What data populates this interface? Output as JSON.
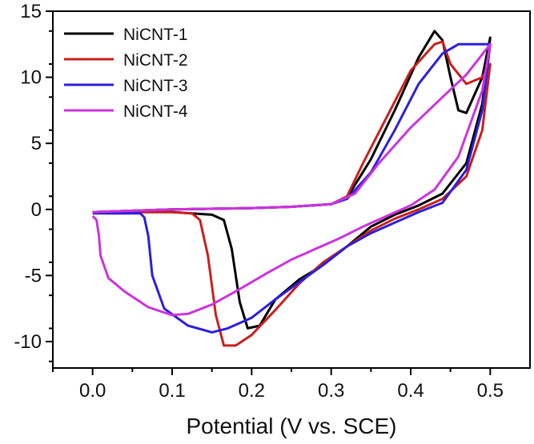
{
  "chart_data": {
    "type": "line",
    "title": "",
    "xlabel": "Potential (V vs. SCE)",
    "ylabel": "",
    "xlim": [
      -0.05,
      0.55
    ],
    "ylim": [
      -12,
      15
    ],
    "xticks": [
      0.0,
      0.1,
      0.2,
      0.3,
      0.4,
      0.5
    ],
    "xtick_labels": [
      "0.0",
      "0.1",
      "0.2",
      "0.3",
      "0.4",
      "0.5"
    ],
    "yticks": [
      -10,
      -5,
      0,
      5,
      10,
      15
    ],
    "ytick_labels": [
      "-10",
      "-5",
      "0",
      "5",
      "10",
      "15"
    ],
    "grid": false,
    "legend_position": "top-left",
    "series": [
      {
        "name": "NiCNT-1",
        "color": "#000000",
        "x": [
          0.0,
          0.1,
          0.2,
          0.25,
          0.3,
          0.32,
          0.35,
          0.38,
          0.41,
          0.43,
          0.44,
          0.45,
          0.46,
          0.47,
          0.49,
          0.5,
          0.49,
          0.47,
          0.44,
          0.41,
          0.38,
          0.35,
          0.32,
          0.29,
          0.26,
          0.23,
          0.21,
          0.195,
          0.185,
          0.175,
          0.165,
          0.15,
          0.1,
          0.05,
          0.0
        ],
        "y": [
          -0.2,
          0.0,
          0.1,
          0.2,
          0.4,
          0.9,
          3.8,
          7.5,
          11.5,
          13.5,
          12.8,
          10.0,
          7.5,
          7.3,
          10.0,
          13.0,
          8.0,
          3.5,
          1.2,
          0.3,
          -0.4,
          -1.3,
          -2.8,
          -4.2,
          -5.3,
          -6.8,
          -8.8,
          -9.0,
          -7.0,
          -3.0,
          -0.8,
          -0.4,
          -0.2,
          -0.2,
          -0.2
        ]
      },
      {
        "name": "NiCNT-2",
        "color": "#c8201e",
        "x": [
          0.0,
          0.1,
          0.2,
          0.25,
          0.3,
          0.32,
          0.34,
          0.37,
          0.4,
          0.43,
          0.44,
          0.45,
          0.47,
          0.49,
          0.5,
          0.49,
          0.47,
          0.44,
          0.41,
          0.38,
          0.35,
          0.32,
          0.29,
          0.26,
          0.23,
          0.2,
          0.18,
          0.165,
          0.155,
          0.145,
          0.135,
          0.125,
          0.1,
          0.05,
          0.0
        ],
        "y": [
          -0.2,
          0.0,
          0.1,
          0.2,
          0.4,
          1.0,
          3.5,
          7.0,
          10.5,
          12.5,
          12.7,
          11.0,
          9.5,
          10.0,
          11.0,
          6.0,
          2.5,
          0.8,
          0.0,
          -0.7,
          -1.6,
          -2.8,
          -4.0,
          -5.6,
          -7.6,
          -9.5,
          -10.3,
          -10.3,
          -8.0,
          -3.5,
          -0.8,
          -0.3,
          -0.2,
          -0.2,
          -0.2
        ]
      },
      {
        "name": "NiCNT-3",
        "color": "#2c1fdc",
        "x": [
          0.0,
          0.1,
          0.2,
          0.25,
          0.3,
          0.32,
          0.35,
          0.38,
          0.41,
          0.44,
          0.46,
          0.48,
          0.5,
          0.49,
          0.47,
          0.44,
          0.41,
          0.38,
          0.35,
          0.32,
          0.29,
          0.26,
          0.23,
          0.2,
          0.17,
          0.15,
          0.12,
          0.09,
          0.075,
          0.07,
          0.065,
          0.06,
          0.04,
          0.02,
          0.0
        ],
        "y": [
          -0.2,
          0.0,
          0.1,
          0.2,
          0.4,
          0.8,
          2.8,
          6.0,
          9.5,
          11.8,
          12.5,
          12.5,
          12.5,
          7.5,
          3.0,
          0.5,
          -0.2,
          -1.0,
          -1.8,
          -2.8,
          -4.2,
          -5.5,
          -6.8,
          -8.2,
          -9.0,
          -9.3,
          -8.8,
          -7.5,
          -5.0,
          -2.0,
          -0.6,
          -0.3,
          -0.3,
          -0.3,
          -0.3
        ]
      },
      {
        "name": "NiCNT-4",
        "color": "#cc33dd",
        "x": [
          0.0,
          0.1,
          0.2,
          0.25,
          0.3,
          0.33,
          0.36,
          0.4,
          0.44,
          0.47,
          0.5,
          0.49,
          0.46,
          0.43,
          0.4,
          0.37,
          0.34,
          0.31,
          0.28,
          0.25,
          0.22,
          0.18,
          0.15,
          0.12,
          0.1,
          0.07,
          0.04,
          0.02,
          0.01,
          0.008,
          0.005,
          0.0
        ],
        "y": [
          -0.2,
          0.0,
          0.1,
          0.2,
          0.4,
          1.2,
          3.5,
          6.2,
          8.5,
          10.2,
          12.5,
          9.0,
          4.0,
          1.5,
          0.3,
          -0.5,
          -1.3,
          -2.2,
          -3.0,
          -3.8,
          -4.8,
          -6.2,
          -7.2,
          -7.9,
          -8.0,
          -7.4,
          -6.2,
          -5.2,
          -3.5,
          -2.0,
          -0.8,
          -0.5
        ]
      }
    ]
  }
}
